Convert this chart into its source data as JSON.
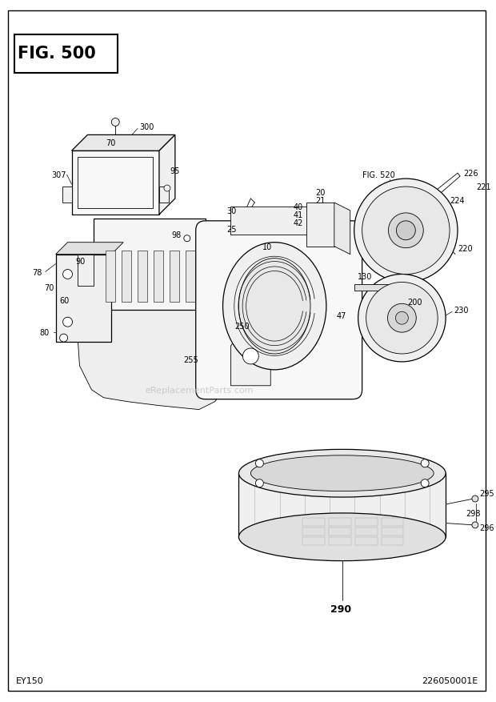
{
  "title": "FIG. 500",
  "bottom_left": "EY150",
  "bottom_right": "226050001E",
  "fig_ref": "FIG. 520",
  "background_color": "#ffffff",
  "line_color": "#000000",
  "text_color": "#000000",
  "watermark": "eReplacementParts.com",
  "watermark_color": "#bbbbbb",
  "fig_width": 6.2,
  "fig_height": 8.78,
  "dpi": 100
}
